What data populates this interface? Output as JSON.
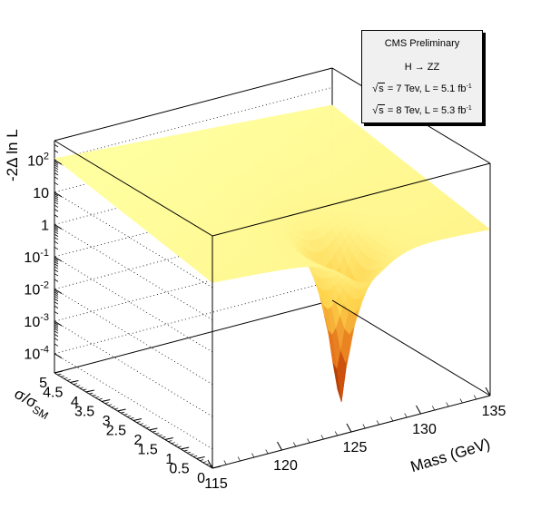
{
  "chart_data": {
    "type": "surface",
    "experiment_label": "CMS Preliminary",
    "channel": "H → ZZ",
    "energy_lines": [
      {
        "sqrt_s": "7 Tev",
        "lumi": "L = 5.1 fb",
        "lumi_exp": "-1"
      },
      {
        "sqrt_s": "8 Tev",
        "lumi": "L = 5.3 fb",
        "lumi_exp": "-1"
      }
    ],
    "xlabel": "Mass (GeV)",
    "ylabel": "σ/σ",
    "ylabel_sub": "SM",
    "zlabel": "-2Δ ln L",
    "x_ticks": [
      {
        "value": 115,
        "label": "115"
      },
      {
        "value": 120,
        "label": "120"
      },
      {
        "value": 125,
        "label": "125"
      },
      {
        "value": 130,
        "label": "130"
      },
      {
        "value": 135,
        "label": "135"
      }
    ],
    "y_ticks": [
      {
        "value": 0,
        "label": "0"
      },
      {
        "value": 0.5,
        "label": "0.5"
      },
      {
        "value": 1,
        "label": "1"
      },
      {
        "value": 1.5,
        "label": "1.5"
      },
      {
        "value": 2,
        "label": "2"
      },
      {
        "value": 2.5,
        "label": "2.5"
      },
      {
        "value": 3,
        "label": "3"
      },
      {
        "value": 3.5,
        "label": "3.5"
      },
      {
        "value": 4,
        "label": "4"
      },
      {
        "value": 4.5,
        "label": "4.5"
      },
      {
        "value": 5,
        "label": "5"
      }
    ],
    "z_ticks": [
      {
        "exp": -4,
        "base": "10",
        "sup": "-4"
      },
      {
        "exp": -3,
        "base": "10",
        "sup": "-3"
      },
      {
        "exp": -2,
        "base": "10",
        "sup": "-2"
      },
      {
        "exp": -1,
        "base": "10",
        "sup": "-1"
      },
      {
        "exp": 0,
        "base": "1",
        "sup": ""
      },
      {
        "exp": 1,
        "base": "10",
        "sup": ""
      },
      {
        "exp": 2,
        "base": "10",
        "sup": "2"
      }
    ],
    "xlim": [
      115,
      135
    ],
    "ylim": [
      0,
      5
    ],
    "zlim_log10": [
      -4.6,
      2.6
    ],
    "z_scale": "log",
    "minimum": {
      "mass": 126,
      "mu": 0.8,
      "value": 3e-05
    },
    "plateau_value": 20,
    "colors": {
      "surface_high": "#ffff99",
      "surface_mid": "#ffd24a",
      "surface_low": "#e06010",
      "surface_min": "#7a1400",
      "frame": "#000000"
    },
    "legend_position": "top-right",
    "grid": "dotted on back walls"
  }
}
